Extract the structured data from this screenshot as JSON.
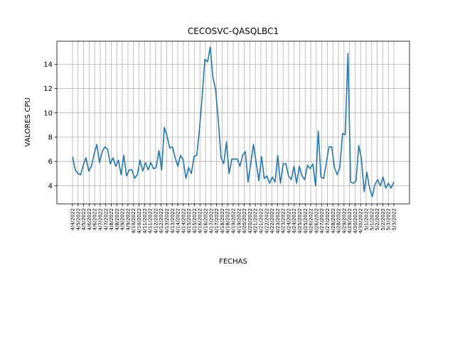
{
  "chart_data": {
    "type": "line",
    "title": "CECOSVC-QASQLBC1",
    "xlabel": "FECHAS",
    "ylabel": "VALORES CPU",
    "ylim": [
      2.5,
      15.9
    ],
    "yticks": [
      4,
      6,
      8,
      10,
      12,
      14
    ],
    "grid": true,
    "line_color": "#1f77b4",
    "x_tick_labels": [
      "4/4/2022",
      "4/5/2022",
      "4/5/2022",
      "4/6/2022",
      "4/6/2022",
      "4/7/2022",
      "4/7/2022",
      "4/8/2022",
      "4/8/2022",
      "4/9/2022",
      "4/9/2022",
      "4/10/2022",
      "4/10/2022",
      "4/11/2022",
      "4/11/2022",
      "4/12/2022",
      "4/12/2022",
      "4/13/2022",
      "4/13/2022",
      "4/14/2022",
      "4/14/2022",
      "4/15/2022",
      "4/15/2022",
      "4/16/2022",
      "4/16/2022",
      "4/17/2022",
      "4/17/2022",
      "4/18/2022",
      "4/18/2022",
      "4/19/2022",
      "4/19/2022",
      "4/20/2022",
      "4/20/2022",
      "4/21/2022",
      "4/21/2022",
      "4/22/2022",
      "4/22/2022",
      "4/23/2022",
      "4/23/2022",
      "4/24/2022",
      "4/24/2022",
      "4/25/2022",
      "4/25/2022",
      "4/26/2022",
      "4/26/2022",
      "4/27/2022",
      "4/27/2022",
      "4/28/2022",
      "4/28/2022",
      "4/29/2022",
      "4/29/2022",
      "4/30/2022",
      "4/30/2022",
      "5/1/2022",
      "5/1/2022",
      "5/2/2022",
      "5/2/2022",
      "5/3/2022",
      "5/3/2022"
    ],
    "series": [
      {
        "values": [
          6.4,
          5.3,
          5.0,
          4.9,
          5.7,
          6.3,
          5.2,
          5.6,
          6.6,
          7.4,
          5.9,
          6.8,
          7.2,
          7.0,
          5.8,
          6.3,
          5.6,
          6.1,
          4.9,
          6.5,
          4.8,
          5.3,
          5.3,
          4.6,
          4.9,
          6.1,
          5.2,
          5.9,
          5.3,
          5.9,
          5.4,
          5.5,
          6.9,
          5.3,
          8.8,
          8.1,
          7.1,
          7.2,
          6.3,
          5.6,
          6.5,
          6.1,
          4.6,
          5.5,
          5.0,
          6.4,
          6.5,
          8.6,
          11.3,
          14.4,
          14.2,
          15.4,
          12.9,
          11.9,
          9.3,
          6.3,
          5.8,
          7.6,
          5.0,
          6.2,
          6.2,
          6.2,
          5.6,
          6.5,
          6.8,
          4.3,
          5.8,
          7.4,
          5.9,
          4.4,
          6.4,
          4.6,
          4.8,
          4.2,
          4.7,
          4.3,
          6.5,
          4.2,
          5.8,
          5.8,
          4.8,
          4.5,
          5.6,
          4.2,
          5.6,
          4.8,
          4.5,
          5.7,
          5.4,
          5.8,
          4.0,
          8.5,
          4.7,
          4.6,
          5.9,
          7.2,
          7.2,
          5.5,
          4.9,
          5.5,
          8.3,
          8.2,
          14.9,
          4.3,
          4.2,
          4.4,
          7.3,
          6.2,
          3.5,
          5.1,
          3.8,
          3.1,
          4.1,
          4.5,
          4.0,
          4.7,
          3.8,
          4.2,
          3.8,
          4.3
        ]
      }
    ]
  }
}
